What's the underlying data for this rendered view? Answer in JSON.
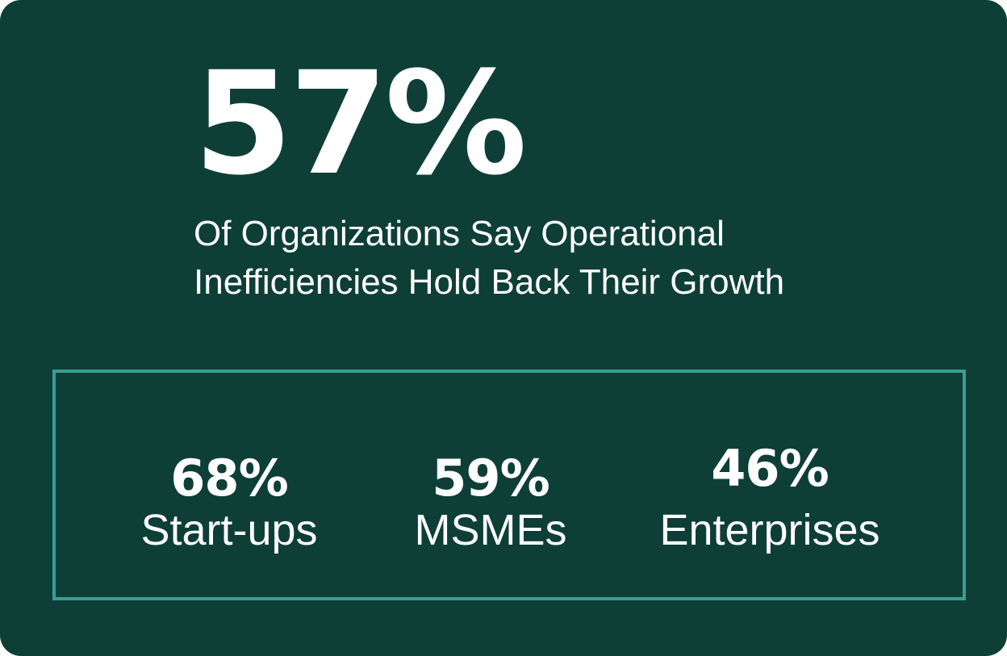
{
  "headline": {
    "value": "57%",
    "subtitle": "Of Organizations Say Operational\nInefficiencies Hold Back Their Growth"
  },
  "stats": [
    {
      "value": "68%",
      "label": "Start-ups"
    },
    {
      "value": "59%",
      "label": "MSMEs"
    },
    {
      "value": "46%",
      "label": "Enterprises"
    }
  ],
  "colors": {
    "background": "#0e3f37",
    "border": "#3a9e95",
    "text": "#ffffff"
  }
}
